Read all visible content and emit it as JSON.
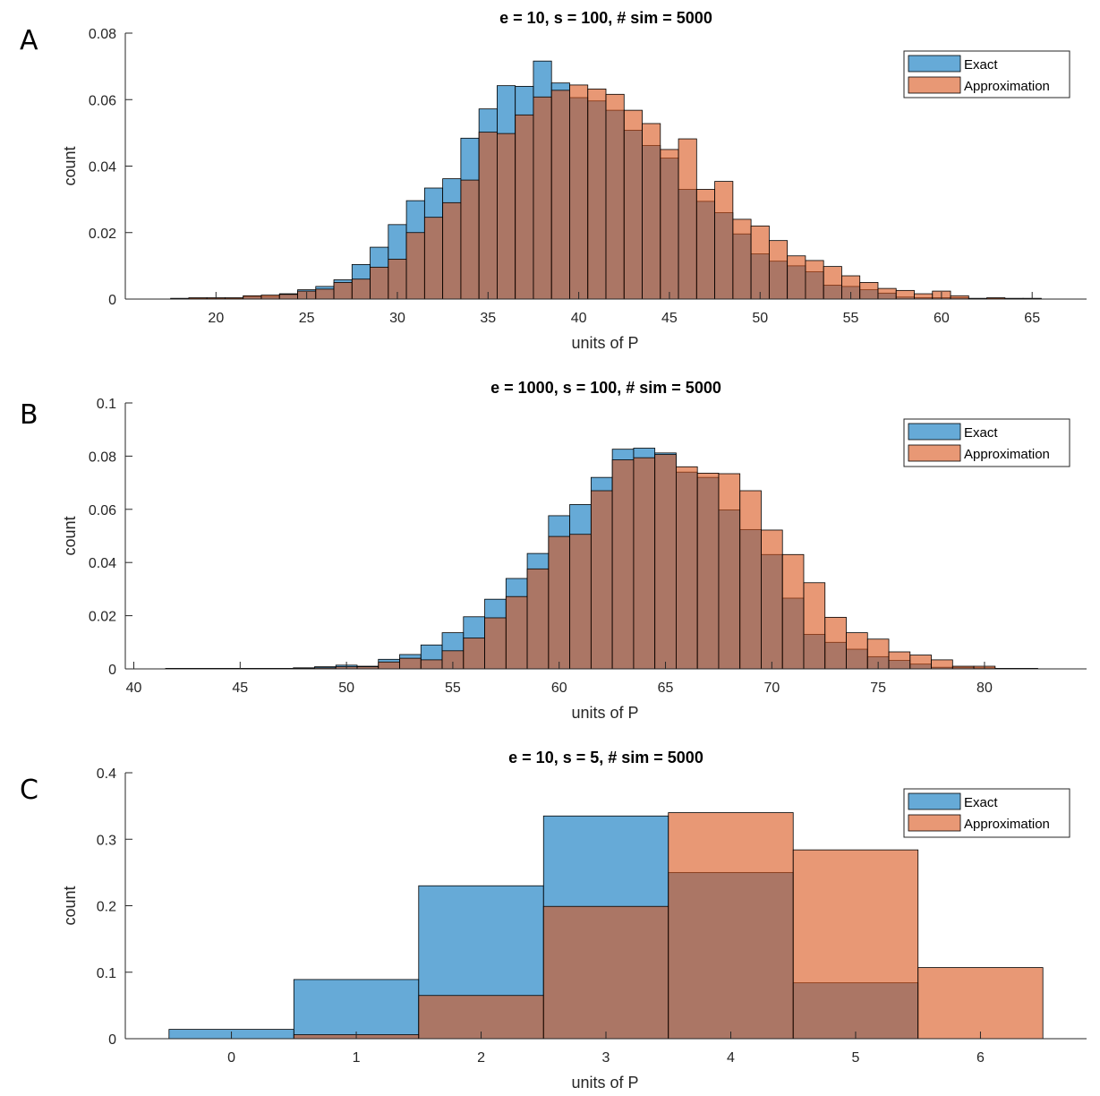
{
  "colors": {
    "exact": "#0072BD",
    "approximation": "#D95319",
    "axis": "#262626"
  },
  "chart_data": [
    {
      "type": "histogram",
      "panel_letter": "A",
      "title": "e = 10, s = 100, # sim = 5000",
      "xlabel": "units of P",
      "ylabel": "count",
      "xlim": [
        15,
        68
      ],
      "ylim": [
        0,
        0.08
      ],
      "xticks": [
        20,
        25,
        30,
        35,
        40,
        45,
        50,
        55,
        60,
        65
      ],
      "yticks": [
        0,
        0.02,
        0.04,
        0.06,
        0.08
      ],
      "ytick_labels": [
        "0",
        "0.02",
        "0.04",
        "0.06",
        "0.08"
      ],
      "legend": {
        "position": "top-right",
        "entries": [
          "Exact",
          "Approximation"
        ]
      },
      "bin_edges": [
        17.5,
        18.5,
        19.5,
        20.5,
        21.5,
        22.5,
        23.5,
        24.5,
        25.5,
        26.5,
        27.5,
        28.5,
        29.5,
        30.5,
        31.5,
        32.5,
        33.5,
        34.5,
        35.5,
        36.5,
        37.5,
        38.5,
        39.5,
        40.5,
        41.5,
        42.5,
        43.5,
        44.5,
        45.5,
        46.5,
        47.5,
        48.5,
        49.5,
        50.5,
        51.5,
        52.5,
        53.5,
        54.5,
        55.5,
        56.5,
        57.5,
        58.5,
        59.5,
        60.5,
        61.5,
        62.5,
        63.5,
        64.5,
        65.5
      ],
      "series": [
        {
          "name": "Exact",
          "values": [
            0.0002,
            0.0002,
            0.0002,
            0.0002,
            0.0008,
            0.0008,
            0.0016,
            0.0028,
            0.0038,
            0.0058,
            0.0104,
            0.0156,
            0.0224,
            0.0296,
            0.0334,
            0.0362,
            0.0484,
            0.0572,
            0.0642,
            0.064,
            0.0716,
            0.065,
            0.0606,
            0.0596,
            0.0568,
            0.0508,
            0.0462,
            0.0424,
            0.033,
            0.0294,
            0.026,
            0.0196,
            0.0136,
            0.0114,
            0.01,
            0.0082,
            0.0042,
            0.0038,
            0.0028,
            0.0018,
            0.0006,
            0.0004,
            0.0004,
            0.0004,
            0.0002,
            0.0002,
            0.0002,
            0.0002
          ]
        },
        {
          "name": "Approximation",
          "values": [
            0.0002,
            0.0004,
            0.0004,
            0.0004,
            0.001,
            0.0012,
            0.0014,
            0.0024,
            0.003,
            0.005,
            0.006,
            0.0096,
            0.012,
            0.02,
            0.0246,
            0.029,
            0.0358,
            0.0502,
            0.0498,
            0.0554,
            0.0608,
            0.0628,
            0.0644,
            0.0632,
            0.0616,
            0.0568,
            0.0528,
            0.045,
            0.0482,
            0.033,
            0.0354,
            0.024,
            0.022,
            0.0176,
            0.013,
            0.0116,
            0.0098,
            0.007,
            0.005,
            0.0032,
            0.0026,
            0.0016,
            0.0024,
            0.001,
            0.0002,
            0.0004,
            0.0002,
            0.0002
          ]
        }
      ]
    },
    {
      "type": "histogram",
      "panel_letter": "B",
      "title": "e = 1000, s = 100, # sim = 5000",
      "xlabel": "units of P",
      "ylabel": "count",
      "xlim": [
        39.6,
        84.8
      ],
      "ylim": [
        0,
        0.1
      ],
      "xticks": [
        40,
        45,
        50,
        55,
        60,
        65,
        70,
        75,
        80
      ],
      "yticks": [
        0,
        0.02,
        0.04,
        0.06,
        0.08,
        0.1
      ],
      "ytick_labels": [
        "0",
        "0.02",
        "0.04",
        "0.06",
        "0.08",
        "0.1"
      ],
      "legend": {
        "position": "top-right",
        "entries": [
          "Exact",
          "Approximation"
        ]
      },
      "bin_edges": [
        41.5,
        42.5,
        43.5,
        44.5,
        45.5,
        46.5,
        47.5,
        48.5,
        49.5,
        50.5,
        51.5,
        52.5,
        53.5,
        54.5,
        55.5,
        56.5,
        57.5,
        58.5,
        59.5,
        60.5,
        61.5,
        62.5,
        63.5,
        64.5,
        65.5,
        66.5,
        67.5,
        68.5,
        69.5,
        70.5,
        71.5,
        72.5,
        73.5,
        74.5,
        75.5,
        76.5,
        77.5,
        78.5,
        79.5,
        80.5,
        81.5,
        82.5
      ],
      "series": [
        {
          "name": "Exact",
          "values": [
            0.0002,
            0.0002,
            0.0002,
            0.0002,
            0.0002,
            0.0002,
            0.0004,
            0.0008,
            0.0014,
            0.001,
            0.0036,
            0.0054,
            0.009,
            0.0136,
            0.0196,
            0.0262,
            0.034,
            0.0434,
            0.0576,
            0.0618,
            0.072,
            0.0826,
            0.083,
            0.0812,
            0.074,
            0.072,
            0.0598,
            0.0524,
            0.043,
            0.0266,
            0.013,
            0.01,
            0.0074,
            0.0046,
            0.0032,
            0.0018,
            0.0006,
            0.0006,
            0.0004,
            0.0002,
            0.0002
          ]
        },
        {
          "name": "Approximation",
          "values": [
            0.0002,
            0.0002,
            0.0002,
            0.0002,
            0.0002,
            0.0002,
            0.0002,
            0.0004,
            0.0008,
            0.0008,
            0.0026,
            0.004,
            0.0034,
            0.0068,
            0.0116,
            0.0192,
            0.0272,
            0.0376,
            0.0498,
            0.0506,
            0.067,
            0.0786,
            0.0794,
            0.0806,
            0.076,
            0.0736,
            0.0734,
            0.067,
            0.0522,
            0.043,
            0.0324,
            0.0194,
            0.0136,
            0.0112,
            0.0064,
            0.0052,
            0.0034,
            0.001,
            0.001,
            0.0002,
            0.0002
          ]
        }
      ]
    },
    {
      "type": "histogram",
      "panel_letter": "C",
      "title": "e = 10, s = 5, # sim = 5000",
      "xlabel": "units of P",
      "ylabel": "count",
      "xlim": [
        -0.85,
        6.85
      ],
      "ylim": [
        0,
        0.4
      ],
      "xticks": [
        0,
        1,
        2,
        3,
        4,
        5,
        6
      ],
      "yticks": [
        0,
        0.1,
        0.2,
        0.3,
        0.4
      ],
      "ytick_labels": [
        "0",
        "0.1",
        "0.2",
        "0.3",
        "0.4"
      ],
      "legend": {
        "position": "top-right",
        "entries": [
          "Exact",
          "Approximation"
        ]
      },
      "bin_edges": [
        -0.5,
        0.5,
        1.5,
        2.5,
        3.5,
        4.5,
        5.5,
        6.5
      ],
      "series": [
        {
          "name": "Exact",
          "values": [
            0.014,
            0.089,
            0.23,
            0.335,
            0.25,
            0.084,
            0.0
          ]
        },
        {
          "name": "Approximation",
          "values": [
            0.0,
            0.006,
            0.065,
            0.199,
            0.34,
            0.284,
            0.107
          ]
        }
      ]
    }
  ]
}
